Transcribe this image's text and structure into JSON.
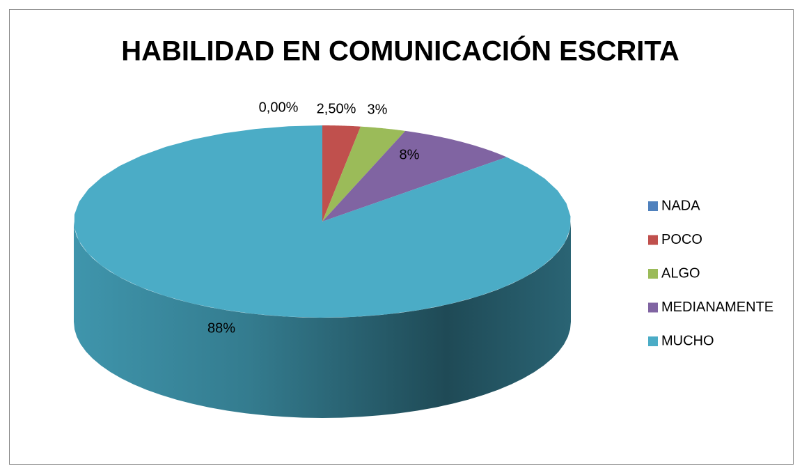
{
  "chart_data": {
    "type": "pie",
    "title": "HABILIDAD EN COMUNICACIÓN ESCRITA",
    "categories": [
      "NADA",
      "POCO",
      "ALGO",
      "MEDIANAMENTE",
      "MUCHO"
    ],
    "values": [
      0,
      2.5,
      3,
      8,
      88
    ],
    "value_labels": [
      "0,00%",
      "2,50%",
      "3%",
      "8%",
      "88%"
    ],
    "colors": [
      "#4f81bd",
      "#c0504d",
      "#9bbb59",
      "#8064a2",
      "#4bacc6"
    ],
    "legend": "right"
  }
}
